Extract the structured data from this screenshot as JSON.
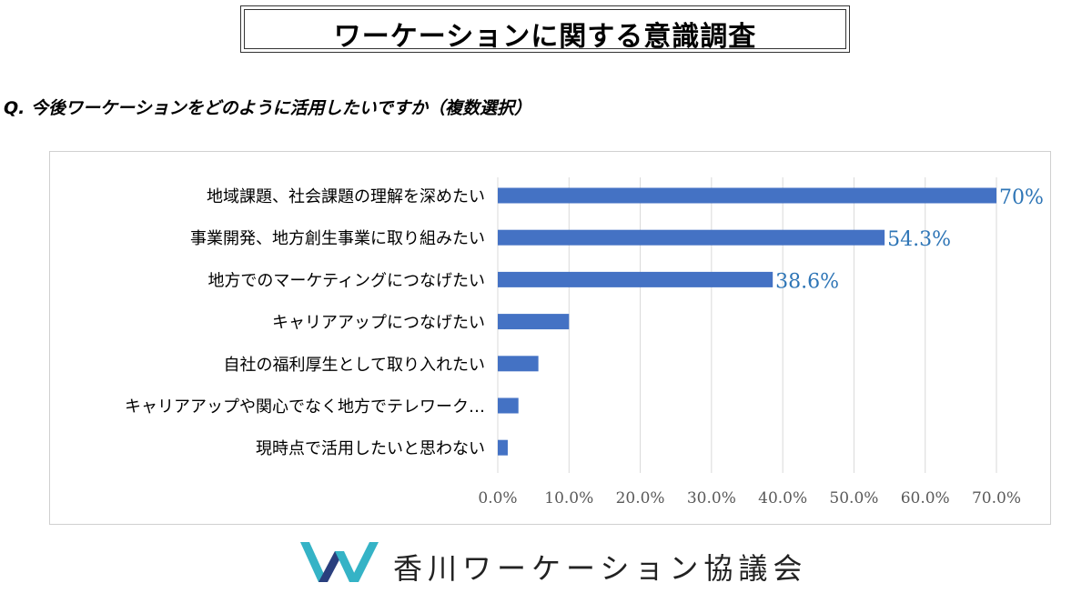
{
  "header": {
    "title": "ワーケーションに関する意識調査",
    "question": "Q. 今後ワーケーションをどのように活用したいですか（複数選択）"
  },
  "chart_data": {
    "type": "bar",
    "orientation": "horizontal",
    "categories": [
      "地域課題、社会課題の理解を深めたい",
      "事業開発、地方創生事業に取り組みたい",
      "地方でのマーケティングにつなげたい",
      "キャリアアップにつなげたい",
      "自社の福利厚生として取り入れたい",
      "キャリアアップや関心でなく地方でテレワーク…",
      "現時点で活用したいと思わない"
    ],
    "values": [
      70.0,
      54.3,
      38.6,
      10.0,
      5.7,
      2.9,
      1.4
    ],
    "data_labels": [
      "70%",
      "54.3%",
      "38.6%",
      null,
      null,
      null,
      null
    ],
    "xlim": [
      0,
      70
    ],
    "xticks": [
      0,
      10,
      20,
      30,
      40,
      50,
      60,
      70
    ],
    "xtick_labels": [
      "0.0%",
      "10.0%",
      "20.0%",
      "30.0%",
      "40.0%",
      "50.0%",
      "60.0%",
      "70.0%"
    ],
    "grid": true,
    "bar_color": "#4472c4",
    "label_color": "#2e75b6"
  },
  "footer": {
    "org_name": "香川ワーケーション協議会",
    "logo_colors": {
      "teal": "#35b3c6",
      "navy": "#2a3f7e"
    }
  }
}
